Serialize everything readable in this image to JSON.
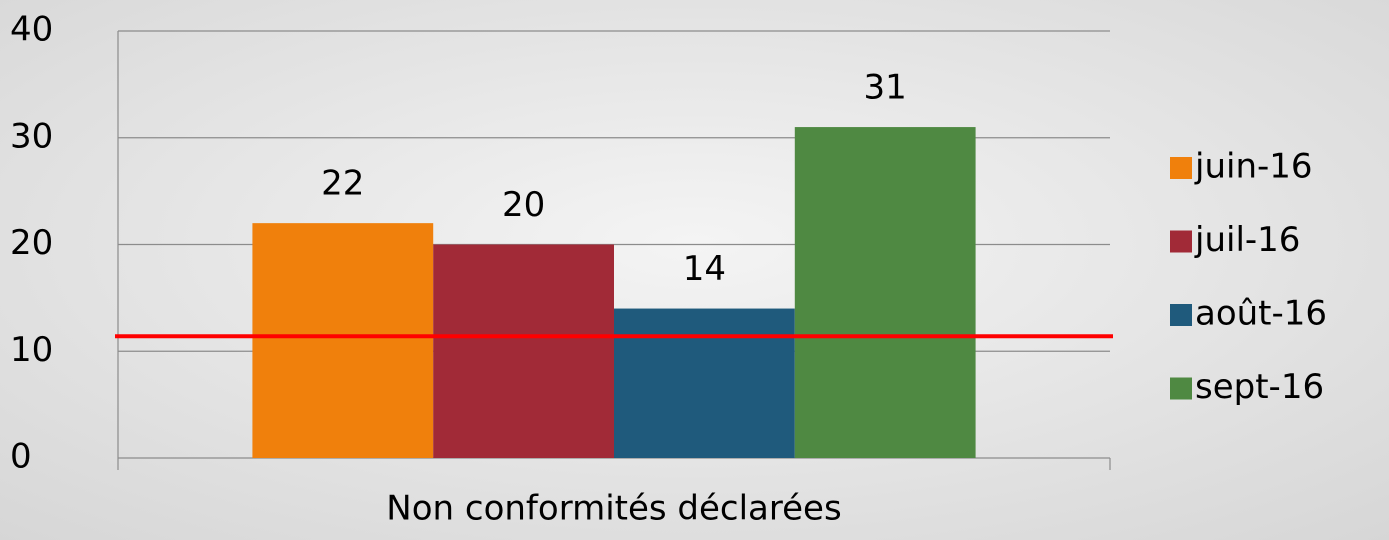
{
  "chart_data": {
    "type": "bar",
    "categories": [
      "Non conformités déclarées"
    ],
    "series": [
      {
        "name": "juin-16",
        "color": "#f0800c",
        "values": [
          22
        ]
      },
      {
        "name": "juil-16",
        "color": "#a12a37",
        "values": [
          20
        ]
      },
      {
        "name": "août-16",
        "color": "#1f5a7c",
        "values": [
          14
        ]
      },
      {
        "name": "sept-16",
        "color": "#4f8942",
        "values": [
          31
        ]
      }
    ],
    "ylim": [
      0,
      40
    ],
    "yticks": [
      0,
      10,
      20,
      30,
      40
    ],
    "grid": true,
    "reference_line": {
      "value": 11.4,
      "color": "#ff0000"
    },
    "legend": "right"
  }
}
